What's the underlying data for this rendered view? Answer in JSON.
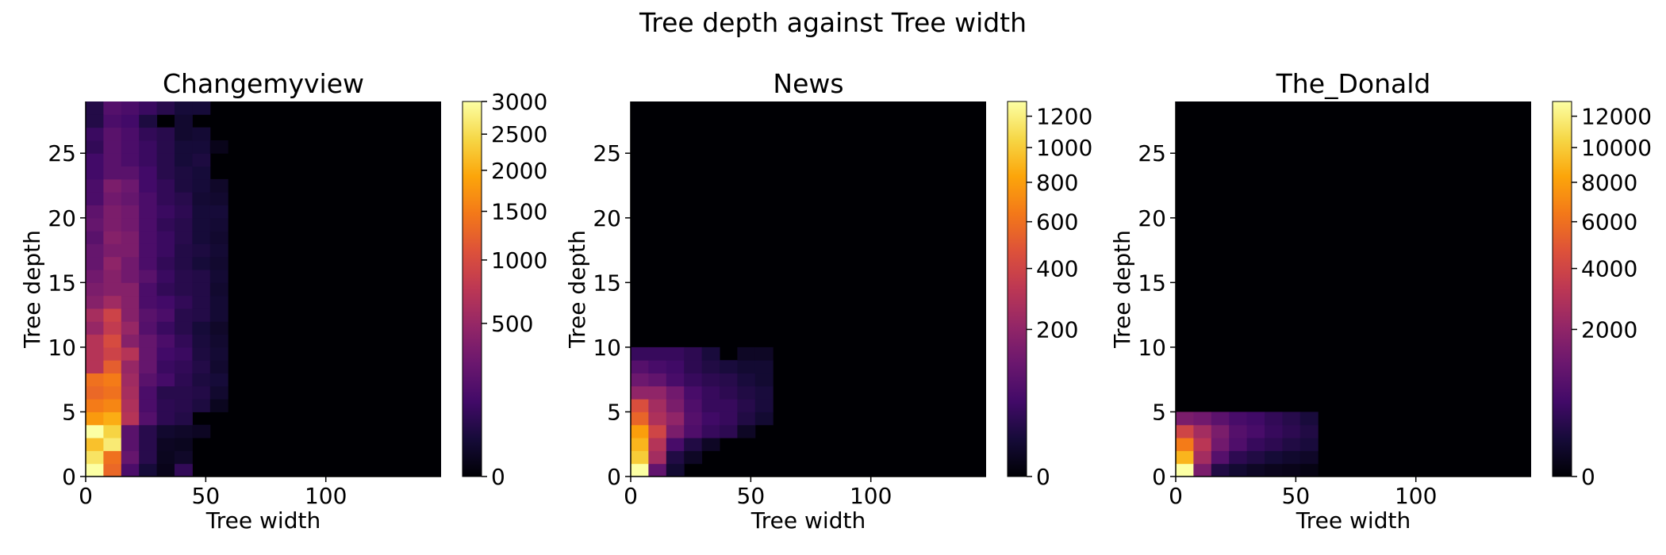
{
  "figure": {
    "title": "Tree depth against Tree width"
  },
  "chart_data": [
    {
      "type": "heatmap",
      "title": "Changemyview",
      "xlabel": "Tree width",
      "ylabel": "Tree depth",
      "xlim": [
        0,
        148
      ],
      "ylim": [
        0,
        29
      ],
      "xticks": [
        0,
        50,
        100
      ],
      "yticks": [
        0,
        5,
        10,
        15,
        20,
        25
      ],
      "x_bins": 20,
      "y_bins": 29,
      "colormap": "inferno",
      "color_scale": "sqrt",
      "vmax": 3000,
      "colorbar_ticks": [
        0,
        500,
        1000,
        1500,
        2000,
        2500,
        3000
      ],
      "profile": [
        [
          0,
          3000,
          1300,
          150,
          30,
          5,
          80,
          0,
          0
        ],
        [
          1,
          2600,
          1400,
          250,
          60,
          8,
          15,
          0,
          0
        ],
        [
          2,
          2200,
          2700,
          200,
          60,
          10,
          8,
          0,
          0
        ],
        [
          3,
          3000,
          2400,
          200,
          60,
          20,
          15,
          10,
          0
        ],
        [
          4,
          1800,
          2000,
          700,
          180,
          70,
          50,
          0,
          0
        ],
        [
          5,
          1500,
          1600,
          650,
          150,
          70,
          60,
          40,
          8
        ],
        [
          6,
          1300,
          1400,
          600,
          150,
          60,
          60,
          50,
          20
        ],
        [
          7,
          1400,
          1500,
          550,
          200,
          130,
          70,
          40,
          30
        ],
        [
          8,
          700,
          1200,
          500,
          250,
          100,
          80,
          50,
          20
        ],
        [
          9,
          700,
          900,
          700,
          250,
          120,
          100,
          40,
          25
        ],
        [
          10,
          700,
          1000,
          400,
          250,
          150,
          80,
          35,
          20
        ],
        [
          11,
          500,
          800,
          500,
          180,
          100,
          60,
          30,
          15
        ],
        [
          12,
          600,
          900,
          400,
          200,
          150,
          60,
          50,
          25
        ],
        [
          13,
          400,
          550,
          400,
          150,
          120,
          80,
          50,
          25
        ],
        [
          14,
          350,
          400,
          400,
          150,
          80,
          60,
          50,
          20
        ],
        [
          15,
          300,
          400,
          300,
          200,
          100,
          60,
          50,
          25
        ],
        [
          16,
          250,
          450,
          300,
          150,
          80,
          50,
          30,
          20
        ],
        [
          17,
          250,
          350,
          350,
          150,
          100,
          50,
          40,
          25
        ],
        [
          18,
          200,
          400,
          350,
          150,
          100,
          60,
          30,
          20
        ],
        [
          19,
          250,
          350,
          300,
          150,
          80,
          60,
          30,
          25
        ],
        [
          20,
          220,
          350,
          300,
          150,
          100,
          70,
          30,
          30
        ],
        [
          21,
          150,
          300,
          250,
          150,
          80,
          60,
          25,
          20
        ],
        [
          22,
          150,
          350,
          280,
          120,
          80,
          40,
          30,
          15
        ],
        [
          23,
          120,
          200,
          200,
          120,
          60,
          40,
          30,
          0
        ],
        [
          24,
          120,
          200,
          150,
          100,
          60,
          30,
          40,
          0
        ],
        [
          25,
          80,
          200,
          150,
          100,
          60,
          30,
          30,
          5
        ],
        [
          26,
          100,
          200,
          150,
          80,
          60,
          20,
          25,
          0
        ],
        [
          27,
          50,
          150,
          120,
          40,
          0,
          20,
          0,
          0
        ],
        [
          28,
          50,
          180,
          150,
          100,
          60,
          30,
          30,
          0
        ]
      ]
    },
    {
      "type": "heatmap",
      "title": "News",
      "xlabel": "Tree width",
      "ylabel": "Tree depth",
      "xlim": [
        0,
        148
      ],
      "ylim": [
        0,
        29
      ],
      "xticks": [
        0,
        50,
        100
      ],
      "yticks": [
        0,
        5,
        10,
        15,
        20,
        25
      ],
      "x_bins": 20,
      "y_bins": 29,
      "colormap": "inferno",
      "color_scale": "sqrt",
      "vmax": 1300,
      "colorbar_ticks": [
        0,
        200,
        400,
        600,
        800,
        1000,
        1200
      ],
      "profile": [
        [
          0,
          1300,
          100,
          10,
          0,
          0,
          0,
          0,
          0
        ],
        [
          1,
          1000,
          250,
          20,
          5,
          0,
          0,
          0,
          0
        ],
        [
          2,
          900,
          300,
          60,
          20,
          5,
          0,
          0,
          0
        ],
        [
          3,
          800,
          400,
          150,
          70,
          40,
          30,
          5,
          0
        ],
        [
          4,
          550,
          280,
          200,
          80,
          50,
          40,
          20,
          10
        ],
        [
          5,
          450,
          250,
          150,
          70,
          40,
          40,
          25,
          15
        ],
        [
          6,
          200,
          200,
          130,
          60,
          40,
          30,
          20,
          15
        ],
        [
          7,
          120,
          100,
          60,
          40,
          30,
          25,
          15,
          10
        ],
        [
          8,
          80,
          60,
          50,
          30,
          20,
          15,
          10,
          10
        ],
        [
          9,
          40,
          40,
          40,
          30,
          15,
          0,
          5,
          5
        ]
      ]
    },
    {
      "type": "heatmap",
      "title": "The_Donald",
      "xlabel": "Tree width",
      "ylabel": "Tree depth",
      "xlim": [
        0,
        148
      ],
      "ylim": [
        0,
        29
      ],
      "xticks": [
        0,
        50,
        100
      ],
      "yticks": [
        0,
        5,
        10,
        15,
        20,
        25
      ],
      "x_bins": 20,
      "y_bins": 29,
      "colormap": "inferno",
      "color_scale": "sqrt",
      "vmax": 13000,
      "colorbar_ticks": [
        0,
        2000,
        4000,
        6000,
        8000,
        10000,
        12000
      ],
      "profile": [
        [
          0,
          13000,
          1500,
          200,
          100,
          50,
          30,
          20,
          10
        ],
        [
          1,
          9000,
          2500,
          800,
          300,
          200,
          120,
          80,
          60
        ],
        [
          2,
          6500,
          3200,
          1300,
          700,
          400,
          300,
          200,
          150
        ],
        [
          3,
          4000,
          2500,
          1500,
          800,
          600,
          400,
          300,
          200
        ],
        [
          4,
          1500,
          1300,
          900,
          600,
          500,
          350,
          250,
          150
        ]
      ]
    }
  ]
}
